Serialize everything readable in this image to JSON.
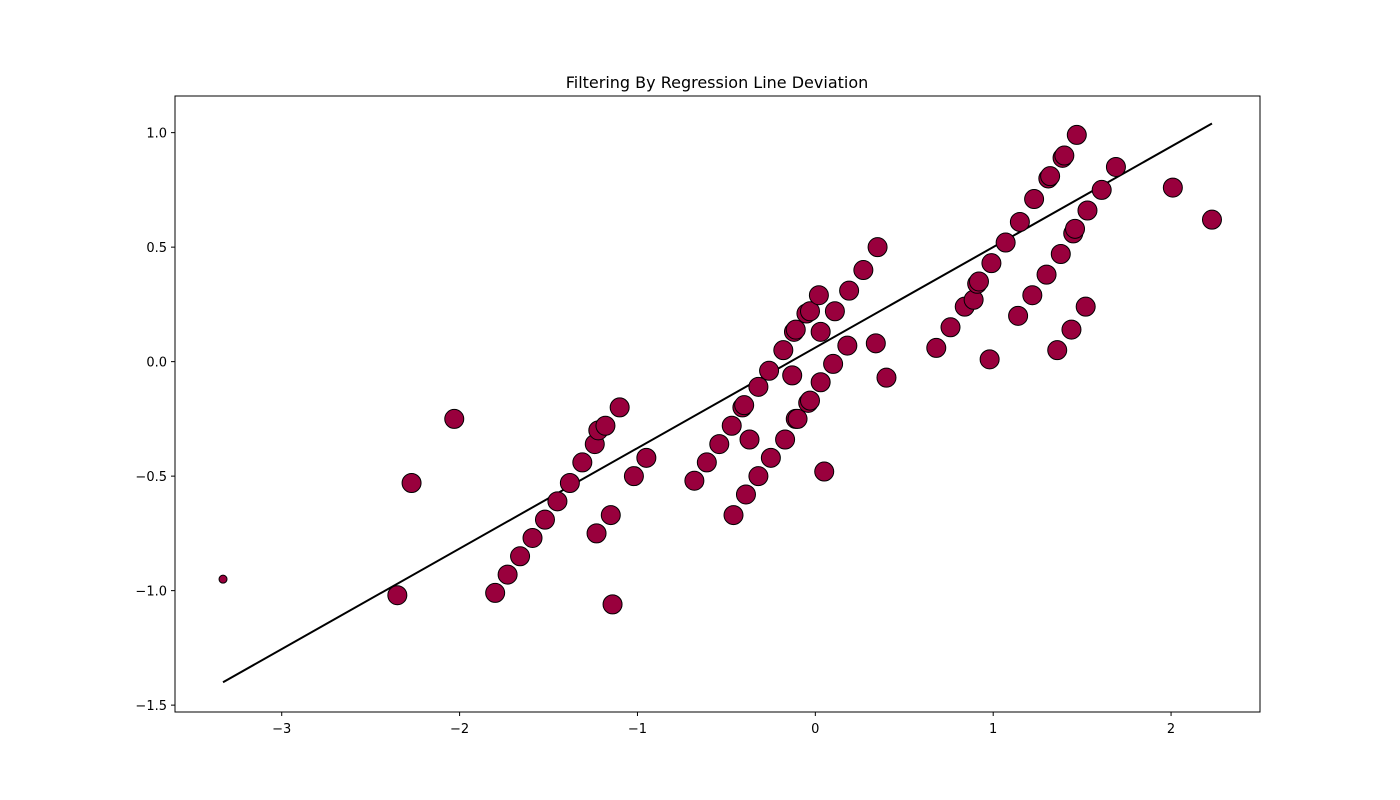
{
  "chart_data": {
    "type": "scatter",
    "title": "Filtering By Regression Line Deviation",
    "xlabel": "",
    "ylabel": "",
    "xlim": [
      -3.6,
      2.5
    ],
    "ylim": [
      -1.53,
      1.16
    ],
    "x_ticks": [
      {
        "value": -3,
        "label": "−3"
      },
      {
        "value": -2,
        "label": "−2"
      },
      {
        "value": -1,
        "label": "−1"
      },
      {
        "value": 0,
        "label": "0"
      },
      {
        "value": 1,
        "label": "1"
      },
      {
        "value": 2,
        "label": "2"
      }
    ],
    "y_ticks": [
      {
        "value": -1.5,
        "label": "−1.5"
      },
      {
        "value": -1.0,
        "label": "−1.0"
      },
      {
        "value": -0.5,
        "label": "−0.5"
      },
      {
        "value": 0.0,
        "label": "0.0"
      },
      {
        "value": 0.5,
        "label": "0.5"
      },
      {
        "value": 1.0,
        "label": "1.0"
      }
    ],
    "grid": false,
    "marker_color": "#99003d",
    "edge_color": "#000000",
    "line_color": "#000000",
    "regression_line": {
      "x": [
        -3.33,
        2.23
      ],
      "y": [
        -1.4,
        1.04
      ]
    },
    "outlier_points": [
      {
        "x": -3.33,
        "y": -0.95
      }
    ],
    "points": [
      {
        "x": -2.35,
        "y": -1.02
      },
      {
        "x": -2.27,
        "y": -0.53
      },
      {
        "x": -2.03,
        "y": -0.25
      },
      {
        "x": -1.8,
        "y": -1.01
      },
      {
        "x": -1.73,
        "y": -0.93
      },
      {
        "x": -1.66,
        "y": -0.85
      },
      {
        "x": -1.59,
        "y": -0.77
      },
      {
        "x": -1.52,
        "y": -0.69
      },
      {
        "x": -1.45,
        "y": -0.61
      },
      {
        "x": -1.38,
        "y": -0.53
      },
      {
        "x": -1.31,
        "y": -0.44
      },
      {
        "x": -1.24,
        "y": -0.36
      },
      {
        "x": -1.23,
        "y": -0.75
      },
      {
        "x": -1.22,
        "y": -0.3
      },
      {
        "x": -1.18,
        "y": -0.28
      },
      {
        "x": -1.15,
        "y": -0.67
      },
      {
        "x": -1.14,
        "y": -1.06
      },
      {
        "x": -1.1,
        "y": -0.2
      },
      {
        "x": -1.02,
        "y": -0.5
      },
      {
        "x": -0.95,
        "y": -0.42
      },
      {
        "x": -0.68,
        "y": -0.52
      },
      {
        "x": -0.61,
        "y": -0.44
      },
      {
        "x": -0.54,
        "y": -0.36
      },
      {
        "x": -0.47,
        "y": -0.28
      },
      {
        "x": -0.46,
        "y": -0.67
      },
      {
        "x": -0.41,
        "y": -0.2
      },
      {
        "x": -0.4,
        "y": -0.19
      },
      {
        "x": -0.39,
        "y": -0.58
      },
      {
        "x": -0.37,
        "y": -0.34
      },
      {
        "x": -0.32,
        "y": -0.5
      },
      {
        "x": -0.32,
        "y": -0.11
      },
      {
        "x": -0.26,
        "y": -0.04
      },
      {
        "x": -0.25,
        "y": -0.42
      },
      {
        "x": -0.18,
        "y": 0.05
      },
      {
        "x": -0.17,
        "y": -0.34
      },
      {
        "x": -0.13,
        "y": -0.06
      },
      {
        "x": -0.12,
        "y": 0.13
      },
      {
        "x": -0.11,
        "y": 0.14
      },
      {
        "x": -0.11,
        "y": -0.25
      },
      {
        "x": -0.1,
        "y": -0.25
      },
      {
        "x": -0.05,
        "y": 0.21
      },
      {
        "x": -0.04,
        "y": -0.18
      },
      {
        "x": -0.03,
        "y": 0.22
      },
      {
        "x": -0.03,
        "y": -0.17
      },
      {
        "x": 0.02,
        "y": 0.29
      },
      {
        "x": 0.03,
        "y": 0.13
      },
      {
        "x": 0.03,
        "y": -0.09
      },
      {
        "x": 0.05,
        "y": -0.48
      },
      {
        "x": 0.1,
        "y": -0.01
      },
      {
        "x": 0.11,
        "y": 0.22
      },
      {
        "x": 0.18,
        "y": 0.07
      },
      {
        "x": 0.19,
        "y": 0.31
      },
      {
        "x": 0.27,
        "y": 0.4
      },
      {
        "x": 0.34,
        "y": 0.08
      },
      {
        "x": 0.35,
        "y": 0.5
      },
      {
        "x": 0.4,
        "y": -0.07
      },
      {
        "x": 0.68,
        "y": 0.06
      },
      {
        "x": 0.76,
        "y": 0.15
      },
      {
        "x": 0.84,
        "y": 0.24
      },
      {
        "x": 0.89,
        "y": 0.27
      },
      {
        "x": 0.91,
        "y": 0.34
      },
      {
        "x": 0.92,
        "y": 0.35
      },
      {
        "x": 0.98,
        "y": 0.01
      },
      {
        "x": 0.99,
        "y": 0.43
      },
      {
        "x": 1.07,
        "y": 0.52
      },
      {
        "x": 1.14,
        "y": 0.2
      },
      {
        "x": 1.15,
        "y": 0.61
      },
      {
        "x": 1.22,
        "y": 0.29
      },
      {
        "x": 1.23,
        "y": 0.71
      },
      {
        "x": 1.3,
        "y": 0.38
      },
      {
        "x": 1.31,
        "y": 0.8
      },
      {
        "x": 1.32,
        "y": 0.81
      },
      {
        "x": 1.36,
        "y": 0.05
      },
      {
        "x": 1.38,
        "y": 0.47
      },
      {
        "x": 1.39,
        "y": 0.89
      },
      {
        "x": 1.4,
        "y": 0.9
      },
      {
        "x": 1.44,
        "y": 0.14
      },
      {
        "x": 1.45,
        "y": 0.56
      },
      {
        "x": 1.46,
        "y": 0.58
      },
      {
        "x": 1.47,
        "y": 0.99
      },
      {
        "x": 1.52,
        "y": 0.24
      },
      {
        "x": 1.53,
        "y": 0.66
      },
      {
        "x": 1.61,
        "y": 0.75
      },
      {
        "x": 1.69,
        "y": 0.85
      },
      {
        "x": 2.01,
        "y": 0.76
      },
      {
        "x": 2.23,
        "y": 0.62
      }
    ]
  }
}
